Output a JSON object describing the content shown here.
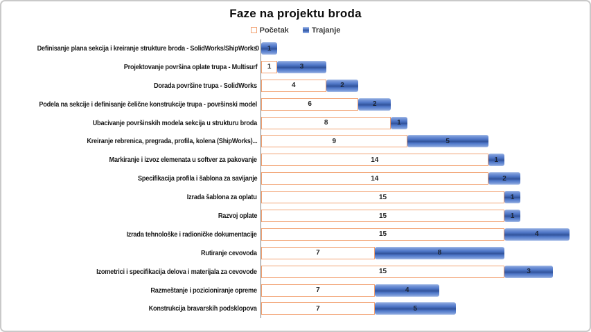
{
  "title": "Faze na projektu broda",
  "legend": {
    "pocetak_label": "Početak",
    "trajanje_label": "Trajanje"
  },
  "colors": {
    "trajanje_blue": "#4472C4",
    "trajanje_blue_dark": "#33549C",
    "trajanje_blue_light": "#AAC0E8",
    "pocetak_border_orange": "#F2A272",
    "axis_gray": "#7F7F7F",
    "frame_border_gray": "#C9C9C9",
    "text_dark": "#1A1A1A"
  },
  "chart_data": {
    "type": "bar",
    "subtype": "horizontal-stacked-gantt",
    "title": "Faze na projektu broda",
    "xlabel": "",
    "ylabel": "",
    "x_max_units": 20,
    "grid": false,
    "legend_position": "top-center",
    "series_names": [
      "Početak",
      "Trajanje"
    ],
    "rows": [
      {
        "label": "Definisanje plana sekcija i kreiranje strukture broda - SolidWorks/ShipWorks",
        "pocetak": 0,
        "trajanje": 1
      },
      {
        "label": "Projektovanje površina oplate trupa - Multisurf",
        "pocetak": 1,
        "trajanje": 3
      },
      {
        "label": "Dorada površine trupa - SolidWorks",
        "pocetak": 4,
        "trajanje": 2
      },
      {
        "label": "Podela na sekcije i definisanje čelične konstrukcije trupa - površinski model",
        "pocetak": 6,
        "trajanje": 2
      },
      {
        "label": "Ubacivanje površinskih modela sekcija u strukturu broda",
        "pocetak": 8,
        "trajanje": 1
      },
      {
        "label": "Kreiranje rebrenica, pregrada, profila, kolena (ShipWorks)...",
        "pocetak": 9,
        "trajanje": 5
      },
      {
        "label": "Markiranje i izvoz elemenata u softver za pakovanje",
        "pocetak": 14,
        "trajanje": 1
      },
      {
        "label": "Specifikacija profila i šablona za savijanje",
        "pocetak": 14,
        "trajanje": 2
      },
      {
        "label": "Izrada šablona za oplatu",
        "pocetak": 15,
        "trajanje": 1
      },
      {
        "label": "Razvoj oplate",
        "pocetak": 15,
        "trajanje": 1
      },
      {
        "label": "Izrada tehnološke i radioničke dokumentacije",
        "pocetak": 15,
        "trajanje": 4
      },
      {
        "label": "Rutiranje cevovoda",
        "pocetak": 7,
        "trajanje": 8
      },
      {
        "label": "Izometrici i specifikacija delova i materijala za cevovode",
        "pocetak": 15,
        "trajanje": 3
      },
      {
        "label": "Razmeštanje i pozicioniranje opreme",
        "pocetak": 7,
        "trajanje": 4
      },
      {
        "label": "Konstrukcija bravarskih podsklopova",
        "pocetak": 7,
        "trajanje": 5
      }
    ]
  }
}
